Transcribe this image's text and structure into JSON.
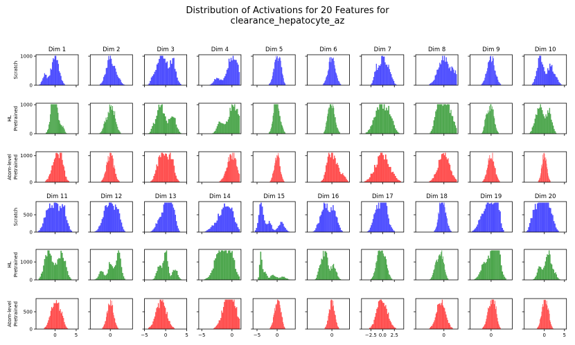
{
  "title": {
    "line1": "Distribution of Activations for 20 Features for",
    "line2": "clearance_hepatocyte_az"
  },
  "chart_data": {
    "type": "histogram-grid",
    "title": "Distribution of Activations for 20 Features for clearance_hepatocyte_az",
    "models": [
      {
        "key": "scratch",
        "label": [
          "Scratch"
        ],
        "color": "#0000ff"
      },
      {
        "key": "hl",
        "label": [
          "HL",
          "Pretrained"
        ],
        "color": "#008000"
      },
      {
        "key": "atom",
        "label": [
          "Atom-level",
          "Pretrained"
        ],
        "color": "#ff0000"
      }
    ],
    "blocks": [
      {
        "dims": [
          "Dim 1",
          "Dim 2",
          "Dim 3",
          "Dim 4",
          "Dim 5",
          "Dim 6",
          "Dim 7",
          "Dim 8",
          "Dim 9",
          "Dim 10"
        ],
        "ylim": {
          "scratch": [
            0,
            1050
          ],
          "hl": [
            0,
            1050
          ],
          "atom": [
            0,
            1150
          ]
        },
        "yticks": {
          "scratch": [
            "0",
            "1000"
          ],
          "hl": [
            "0",
            "1000"
          ],
          "atom": [
            "0",
            "1000"
          ]
        },
        "ytick_values": {
          "scratch": [
            0,
            1000
          ],
          "hl": [
            0,
            1000
          ],
          "atom": [
            0,
            1000
          ]
        }
      },
      {
        "dims": [
          "Dim 11",
          "Dim 12",
          "Dim 13",
          "Dim 14",
          "Dim 15",
          "Dim 16",
          "Dim 17",
          "Dim 18",
          "Dim 19",
          "Dim 20"
        ],
        "ylim": {
          "scratch": [
            0,
            880
          ],
          "hl": [
            0,
            1700
          ],
          "atom": [
            0,
            880
          ]
        },
        "yticks": {
          "scratch": [
            "0",
            "500"
          ],
          "hl": [
            "0",
            "1000"
          ],
          "atom": [
            "0",
            "500"
          ]
        },
        "ytick_values": {
          "scratch": [
            0,
            500
          ],
          "hl": [
            0,
            1000
          ],
          "atom": [
            0,
            500
          ]
        }
      }
    ],
    "xaxes": [
      {
        "dim": "Dim 11",
        "xlim": [
          -4.5,
          5.5
        ],
        "ticks": [
          0,
          5
        ],
        "labels": [
          "0",
          "5"
        ]
      },
      {
        "dim": "Dim 12",
        "xlim": [
          -4.5,
          5
        ],
        "ticks": [
          0
        ],
        "labels": [
          "0"
        ]
      },
      {
        "dim": "Dim 13",
        "xlim": [
          -5,
          5
        ],
        "ticks": [
          -5,
          0,
          5
        ],
        "labels": [
          "−5",
          "0",
          "5"
        ]
      },
      {
        "dim": "Dim 14",
        "xlim": [
          -5.5,
          1.5
        ],
        "ticks": [
          -5,
          0
        ],
        "labels": [
          "−5",
          "0"
        ]
      },
      {
        "dim": "Dim 15",
        "xlim": [
          -6,
          4.5
        ],
        "ticks": [
          -5,
          0
        ],
        "labels": [
          "−5",
          "0"
        ]
      },
      {
        "dim": "Dim 16",
        "xlim": [
          -7,
          5
        ],
        "ticks": [
          0
        ],
        "labels": [
          "0"
        ]
      },
      {
        "dim": "Dim 17",
        "xlim": [
          -4.5,
          4.5
        ],
        "ticks": [
          -2.5,
          0,
          2.5
        ],
        "labels": [
          "−2.5",
          "0.0",
          "2.5"
        ]
      },
      {
        "dim": "Dim 18",
        "xlim": [
          -5,
          2.5
        ],
        "ticks": [
          0
        ],
        "labels": [
          "0"
        ]
      },
      {
        "dim": "Dim 19",
        "xlim": [
          -5,
          5
        ],
        "ticks": [
          0
        ],
        "labels": [
          "0"
        ]
      },
      {
        "dim": "Dim 20",
        "xlim": [
          -5,
          5.5
        ],
        "ticks": [
          0,
          5
        ],
        "labels": [
          "0",
          "5"
        ]
      }
    ],
    "histograms": {
      "Dim 1": {
        "scratch": [
          [
            0,
            0.9,
            0.55
          ],
          [
            -2.5,
            0.5,
            0.2
          ]
        ],
        "hl": [
          [
            0,
            0.85,
            0.45
          ],
          [
            -0.3,
            0.6,
            0.7
          ],
          [
            1.8,
            0.4,
            0.15
          ]
        ],
        "atom": [
          [
            0.5,
            1.1,
            0.72
          ],
          [
            1.6,
            0.5,
            0.2
          ]
        ]
      },
      "Dim 2": {
        "scratch": [
          [
            0,
            0.9,
            0.75
          ],
          [
            1.8,
            0.6,
            0.15
          ]
        ],
        "hl": [
          [
            0.3,
            0.8,
            0.8
          ],
          [
            -1.2,
            0.5,
            0.2
          ]
        ],
        "atom": [
          [
            0,
            0.8,
            0.8
          ]
        ]
      },
      "Dim 3": {
        "scratch": [
          [
            -1.2,
            0.9,
            0.55
          ],
          [
            1.6,
            0.8,
            0.5
          ],
          [
            0,
            0.5,
            0.2
          ],
          [
            -3,
            0.5,
            0.15
          ]
        ],
        "hl": [
          [
            -1.2,
            0.9,
            0.55
          ],
          [
            1.6,
            0.8,
            0.4
          ],
          [
            -3,
            0.4,
            0.1
          ]
        ],
        "atom": [
          [
            -1,
            1,
            0.5
          ],
          [
            1.2,
            0.8,
            0.45
          ]
        ]
      },
      "Dim 4": {
        "scratch": [
          [
            0,
            0.8,
            0.8
          ],
          [
            -2.5,
            0.5,
            0.2
          ],
          [
            1,
            0.4,
            0.2
          ]
        ],
        "hl": [
          [
            0.2,
            0.8,
            0.8
          ],
          [
            -2,
            0.5,
            0.3
          ],
          [
            1.3,
            0.3,
            0.25
          ]
        ],
        "atom": [
          [
            0,
            0.8,
            0.9
          ]
        ]
      },
      "Dim 5": {
        "scratch": [
          [
            0,
            0.8,
            0.75
          ],
          [
            1,
            0.4,
            0.2
          ]
        ],
        "hl": [
          [
            0,
            0.8,
            0.5
          ],
          [
            -0.5,
            0.4,
            0.2
          ]
        ],
        "atom": [
          [
            0,
            0.7,
            1.0
          ]
        ]
      },
      "Dim 6": {
        "scratch": [
          [
            0,
            1,
            1.0
          ]
        ],
        "hl": [
          [
            0,
            0.9,
            0.9
          ],
          [
            -1,
            0.5,
            0.3
          ]
        ],
        "atom": [
          [
            -0.5,
            1,
            0.75
          ],
          [
            1.5,
            1,
            0.35
          ],
          [
            3.5,
            0.6,
            0.15
          ]
        ]
      },
      "Dim 7": {
        "scratch": [
          [
            0,
            0.8,
            0.8
          ],
          [
            -1.5,
            0.4,
            0.35
          ],
          [
            1.5,
            0.6,
            0.3
          ]
        ],
        "hl": [
          [
            -0.5,
            1.2,
            0.45
          ],
          [
            1.5,
            0.8,
            0.25
          ]
        ],
        "atom": [
          [
            0,
            1.5,
            0.72
          ]
        ]
      },
      "Dim 8": {
        "scratch": [
          [
            0,
            1,
            0.9
          ],
          [
            2,
            0.6,
            0.3
          ]
        ],
        "hl": [
          [
            0,
            0.8,
            0.6
          ],
          [
            -1.2,
            0.5,
            0.4
          ],
          [
            1.3,
            0.6,
            0.3
          ]
        ],
        "atom": [
          [
            0,
            1,
            0.85
          ]
        ]
      },
      "Dim 9": {
        "scratch": [
          [
            0,
            0.9,
            0.95
          ]
        ],
        "hl": [
          [
            0,
            0.7,
            0.55
          ],
          [
            -1.2,
            0.4,
            0.25
          ]
        ],
        "atom": [
          [
            0,
            0.8,
            0.7
          ]
        ]
      },
      "Dim 10": {
        "scratch": [
          [
            -1,
            0.8,
            0.75
          ],
          [
            1.5,
            0.8,
            0.5
          ],
          [
            3,
            0.6,
            0.15
          ]
        ],
        "hl": [
          [
            -1,
            0.8,
            0.7
          ],
          [
            1.2,
            0.7,
            0.55
          ],
          [
            -2.5,
            0.5,
            0.2
          ]
        ],
        "atom": [
          [
            0,
            0.6,
            1.0
          ]
        ]
      },
      "Dim 11": {
        "scratch": [
          [
            -1.5,
            1,
            0.5
          ],
          [
            1.7,
            0.9,
            0.58
          ],
          [
            0,
            0.6,
            0.3
          ]
        ],
        "hl": [
          [
            -1.8,
            0.8,
            0.25
          ],
          [
            1.8,
            0.8,
            0.22
          ],
          [
            0,
            0.8,
            0.12
          ]
        ],
        "atom": [
          [
            0,
            1,
            1.0
          ],
          [
            1.5,
            0.6,
            0.3
          ]
        ]
      },
      "Dim 12": {
        "scratch": [
          [
            0,
            1,
            0.6
          ],
          [
            1.8,
            0.6,
            0.4
          ],
          [
            -1.5,
            0.8,
            0.2
          ]
        ],
        "hl": [
          [
            0,
            0.5,
            0.3
          ],
          [
            1.8,
            0.6,
            0.5
          ],
          [
            -2,
            0.6,
            0.15
          ]
        ],
        "atom": [
          [
            0,
            0.7,
            1.0
          ]
        ]
      },
      "Dim 13": {
        "scratch": [
          [
            0,
            1.2,
            0.5
          ],
          [
            0.6,
            0.5,
            0.6
          ],
          [
            1.8,
            0.6,
            0.4
          ],
          [
            -2,
            0.6,
            0.1
          ]
        ],
        "hl": [
          [
            -1.5,
            0.6,
            0.3
          ],
          [
            0,
            0.5,
            0.6
          ],
          [
            2.2,
            0.6,
            0.25
          ]
        ],
        "atom": [
          [
            -1,
            1.2,
            0.72
          ]
        ]
      },
      "Dim 14": {
        "scratch": [
          [
            -0.5,
            0.8,
            0.8
          ],
          [
            -2,
            0.7,
            0.4
          ],
          [
            -3.5,
            0.5,
            0.1
          ]
        ],
        "hl": [
          [
            -1,
            1,
            0.5
          ],
          [
            -2.5,
            0.8,
            0.25
          ],
          [
            0,
            0.5,
            0.2
          ]
        ],
        "atom": [
          [
            0,
            0.8,
            0.9
          ],
          [
            -1,
            0.8,
            0.6
          ]
        ]
      },
      "Dim 15": {
        "scratch": [
          [
            -4,
            0.6,
            0.92
          ],
          [
            -2,
            0.6,
            0.35
          ],
          [
            1,
            0.8,
            0.3
          ]
        ],
        "hl": [
          [
            -4,
            0.3,
            0.95
          ],
          [
            -3,
            0.4,
            0.3
          ],
          [
            -1,
            0.8,
            0.15
          ],
          [
            1.5,
            0.8,
            0.1
          ]
        ],
        "atom": [
          [
            0,
            0.7,
            1.0
          ],
          [
            1,
            0.4,
            0.3
          ]
        ]
      },
      "Dim 16": {
        "scratch": [
          [
            -2,
            1,
            0.6
          ],
          [
            0.5,
            1,
            0.5
          ],
          [
            -4,
            0.6,
            0.1
          ]
        ],
        "hl": [
          [
            -2,
            0.8,
            0.3
          ],
          [
            0.5,
            0.8,
            0.15
          ],
          [
            -3.5,
            0.5,
            0.1
          ]
        ],
        "atom": [
          [
            0,
            0.8,
            0.9
          ]
        ]
      },
      "Dim 17": {
        "scratch": [
          [
            0,
            1,
            0.75
          ],
          [
            0.4,
            0.3,
            0.6
          ],
          [
            -1.5,
            0.7,
            0.3
          ]
        ],
        "hl": [
          [
            0,
            0.8,
            0.45
          ],
          [
            -1,
            0.6,
            0.2
          ]
        ],
        "atom": [
          [
            0,
            1.1,
            0.9
          ],
          [
            -0.8,
            0.5,
            0.3
          ]
        ]
      },
      "Dim 18": {
        "scratch": [
          [
            -0.2,
            0.6,
            0.75
          ],
          [
            -0.5,
            0.4,
            0.3
          ]
        ],
        "hl": [
          [
            -0.5,
            0.5,
            0.12
          ],
          [
            -1.5,
            0.4,
            0.05
          ]
        ],
        "atom": [
          [
            -0.5,
            0.8,
            0.9
          ]
        ]
      },
      "Dim 19": {
        "scratch": [
          [
            0,
            1,
            0.5
          ],
          [
            1.5,
            0.6,
            0.5
          ],
          [
            -2,
            1,
            0.3
          ]
        ],
        "hl": [
          [
            0,
            1,
            0.2
          ],
          [
            1.5,
            0.8,
            0.25
          ],
          [
            -2,
            0.8,
            0.1
          ]
        ],
        "atom": [
          [
            0,
            0.8,
            0.75
          ],
          [
            1,
            0.5,
            0.3
          ]
        ]
      },
      "Dim 20": {
        "scratch": [
          [
            -1.5,
            1,
            0.5
          ],
          [
            1,
            1,
            0.5
          ],
          [
            0,
            0.6,
            0.3
          ],
          [
            -3,
            0.6,
            0.15
          ]
        ],
        "hl": [
          [
            1,
            0.6,
            0.4
          ],
          [
            -1,
            0.7,
            0.2
          ],
          [
            2.5,
            0.6,
            0.1
          ]
        ],
        "atom": [
          [
            0,
            0.7,
            0.95
          ],
          [
            1,
            0.5,
            0.3
          ]
        ]
      }
    }
  }
}
